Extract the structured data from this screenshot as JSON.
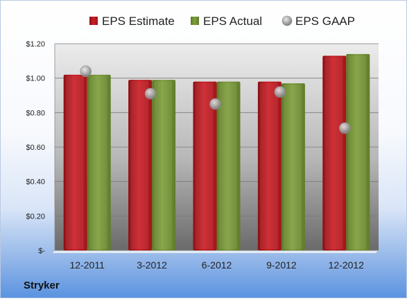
{
  "company": "Stryker",
  "colors": {
    "estimate": "#cc1f26",
    "actual": "#7f9f3c",
    "gaap": "#a9a9a9",
    "plot_top": "#ececec",
    "plot_bottom": "#6a6a6a",
    "floor": "#e6eef8"
  },
  "chart_data": {
    "type": "bar",
    "categories": [
      "12-2011",
      "3-2012",
      "6-2012",
      "9-2012",
      "12-2012"
    ],
    "series": [
      {
        "name": "EPS Estimate",
        "values": [
          1.02,
          0.99,
          0.98,
          0.98,
          1.13
        ],
        "color": "#cc1f26",
        "style": "bar"
      },
      {
        "name": "EPS Actual",
        "values": [
          1.02,
          0.99,
          0.98,
          0.97,
          1.14
        ],
        "color": "#7f9f3c",
        "style": "bar"
      },
      {
        "name": "EPS GAAP",
        "values": [
          1.04,
          0.91,
          0.85,
          0.92,
          0.71
        ],
        "color": "#a9a9a9",
        "style": "marker"
      }
    ],
    "ylim": [
      0,
      1.2
    ],
    "yticks": [
      0,
      0.2,
      0.4,
      0.6,
      0.8,
      1.0,
      1.2
    ],
    "ytick_labels": [
      "$-",
      "$0.20",
      "$0.40",
      "$0.60",
      "$0.80",
      "$1.00",
      "$1.20"
    ],
    "legend_position": "top",
    "grid": true
  }
}
